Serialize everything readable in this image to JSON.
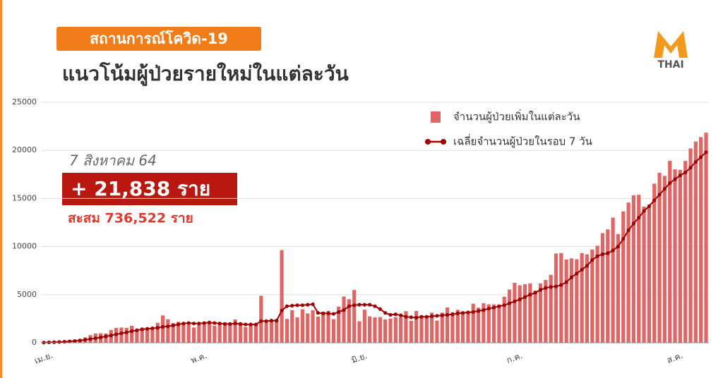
{
  "chart_data": {
    "type": "bar",
    "badge": "สถานการณ์โควิด-19",
    "title": "แนวโน้มผู้ป่วยรายใหม่ในแต่ละวัน",
    "logo": "THAI",
    "annotation": {
      "date": "7 สิงหาคม 64",
      "value": "+ 21,838 ราย",
      "cumulative": "สะสม 736,522 ราย"
    },
    "categories": [
      "เม.ย.",
      null,
      null,
      null,
      null,
      null,
      null,
      null,
      null,
      null,
      null,
      null,
      null,
      null,
      null,
      null,
      null,
      null,
      null,
      null,
      null,
      null,
      null,
      null,
      null,
      null,
      null,
      null,
      null,
      null,
      "พ.ค.",
      null,
      null,
      null,
      null,
      null,
      null,
      null,
      null,
      null,
      null,
      null,
      null,
      null,
      null,
      null,
      null,
      null,
      null,
      null,
      null,
      null,
      null,
      null,
      null,
      null,
      null,
      null,
      null,
      null,
      null,
      "มิ.ย.",
      null,
      null,
      null,
      null,
      null,
      null,
      null,
      null,
      null,
      null,
      null,
      null,
      null,
      null,
      null,
      null,
      null,
      null,
      null,
      null,
      null,
      null,
      null,
      null,
      null,
      null,
      null,
      null,
      null,
      "ก.ค.",
      null,
      null,
      null,
      null,
      null,
      null,
      null,
      null,
      null,
      null,
      null,
      null,
      null,
      null,
      null,
      null,
      null,
      null,
      null,
      null,
      null,
      null,
      null,
      null,
      null,
      null,
      null,
      null,
      null,
      null,
      "ส.ค.",
      null,
      null,
      null,
      null,
      null,
      null
    ],
    "series": [
      {
        "name": "จำนวนผู้ป่วยเพิ่มในแต่ละวัน",
        "type": "bar",
        "color": "#e06666",
        "values": [
          26,
          47,
          84,
          89,
          194,
          250,
          334,
          405,
          559,
          789,
          967,
          985,
          965,
          1335,
          1543,
          1582,
          1547,
          1767,
          1390,
          1443,
          1458,
          1470,
          2070,
          2839,
          2438,
          2048,
          2179,
          2012,
          1871,
          1583,
          1891,
          2041,
          2101,
          1763,
          1911,
          2112,
          2044,
          2419,
          2101,
          1630,
          1919,
          1983,
          4887,
          2256,
          2296,
          2302,
          9635,
          2473,
          3394,
          2636,
          3481,
          3052,
          3382,
          2713,
          3226,
          3323,
          2455,
          3759,
          4803,
          4528,
          5485,
          2230,
          3440,
          2742,
          2635,
          2671,
          2419,
          2516,
          2662,
          2680,
          3279,
          2290,
          3309,
          2804,
          2662,
          3129,
          2305,
          3129,
          3667,
          3174,
          3423,
          3231,
          3175,
          4059,
          3644,
          4108,
          3995,
          3995,
          3964,
          4786,
          5533,
          6230,
          5973,
          6087,
          6166,
          5420,
          6166,
          6519,
          7058,
          9276,
          9326,
          8656,
          8773,
          8685,
          9317,
          9186,
          9692,
          10082,
          11397,
          11784,
          13002,
          11305,
          13655,
          14575,
          15335,
          15376,
          14150,
          14260,
          16533,
          17669,
          17345,
          18912,
          18027,
          17970,
          18901,
          20200,
          20920,
          21379,
          21838
        ]
      },
      {
        "name": "เฉลี่ยจำนวนผู้ป่วยในรอบ 7 วัน",
        "type": "line",
        "color": "#a00000",
        "values": [
          20,
          35,
          55,
          75,
          100,
          140,
          180,
          230,
          300,
          380,
          470,
          560,
          660,
          760,
          870,
          980,
          1080,
          1200,
          1300,
          1400,
          1450,
          1500,
          1550,
          1650,
          1700,
          1800,
          1900,
          2000,
          2050,
          2000,
          2000,
          2050,
          2100,
          2050,
          2000,
          1950,
          1950,
          2000,
          1950,
          1900,
          1900,
          1900,
          2250,
          2250,
          2300,
          2300,
          3350,
          3800,
          3850,
          3900,
          3900,
          3950,
          4000,
          3100,
          3050,
          3050,
          3000,
          3200,
          3400,
          3800,
          3900,
          3950,
          3950,
          3950,
          3800,
          3500,
          3100,
          2900,
          2950,
          2850,
          2700,
          2650,
          2600,
          2700,
          2700,
          2750,
          2800,
          2850,
          2900,
          2950,
          3050,
          3100,
          3150,
          3200,
          3300,
          3400,
          3550,
          3650,
          3800,
          3900,
          4100,
          4300,
          4500,
          4750,
          5000,
          5200,
          5500,
          5700,
          5800,
          5850,
          6000,
          6300,
          6800,
          7200,
          7600,
          8000,
          8600,
          9000,
          9200,
          9300,
          9600,
          10000,
          10800,
          11700,
          12400,
          13000,
          13700,
          14200,
          14800,
          15400,
          16000,
          16600,
          17000,
          17400,
          17700,
          18200,
          18800,
          19300,
          19800
        ]
      }
    ],
    "ylim": [
      0,
      25000
    ],
    "yticks": [
      0,
      5000,
      10000,
      15000,
      20000,
      25000
    ],
    "grid": true
  }
}
